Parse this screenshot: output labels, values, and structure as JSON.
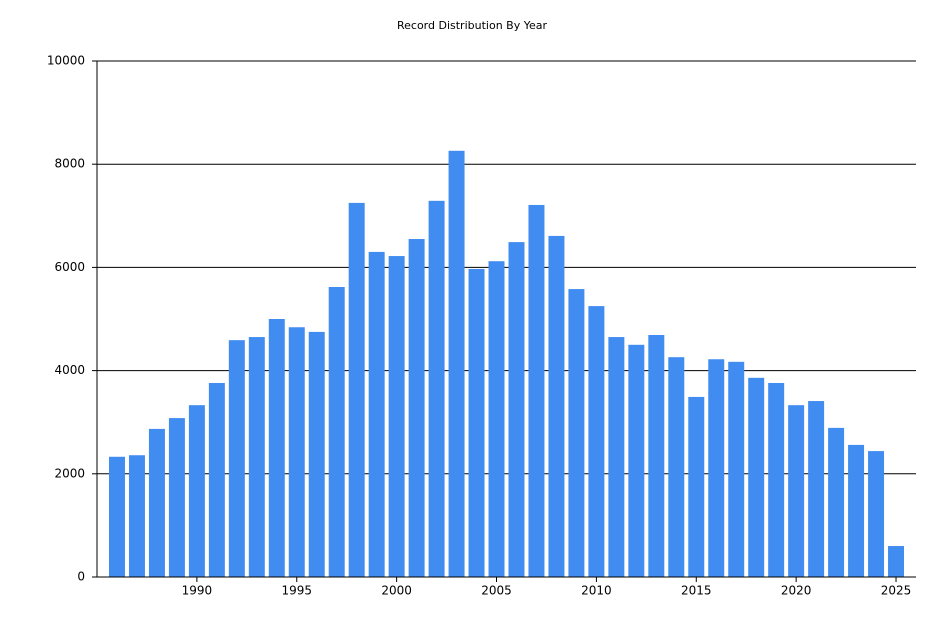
{
  "chart_data": {
    "type": "bar",
    "title": "Record Distribution By Year",
    "x": [
      1986,
      1987,
      1988,
      1989,
      1990,
      1991,
      1992,
      1993,
      1994,
      1995,
      1996,
      1997,
      1998,
      1999,
      2000,
      2001,
      2002,
      2003,
      2004,
      2005,
      2006,
      2007,
      2008,
      2009,
      2010,
      2011,
      2012,
      2013,
      2014,
      2015,
      2016,
      2017,
      2018,
      2019,
      2020,
      2021,
      2022,
      2023,
      2024,
      2025
    ],
    "values": [
      2330,
      2360,
      2870,
      3080,
      3330,
      3760,
      4590,
      4650,
      5000,
      4840,
      4750,
      5620,
      7250,
      6300,
      6220,
      6550,
      7290,
      8260,
      5970,
      6120,
      6490,
      7210,
      6610,
      5580,
      5250,
      4650,
      4500,
      4690,
      4260,
      3490,
      4220,
      4170,
      3860,
      3760,
      3330,
      3410,
      2890,
      2560,
      2440,
      600
    ],
    "color": "#418cf0",
    "xlim": [
      1985,
      2026
    ],
    "xticks": [
      1990,
      1995,
      2000,
      2005,
      2010,
      2015,
      2020,
      2025
    ],
    "ylim": [
      0,
      10000
    ],
    "yticks": [
      0,
      2000,
      4000,
      6000,
      8000,
      10000
    ],
    "grid": true
  }
}
